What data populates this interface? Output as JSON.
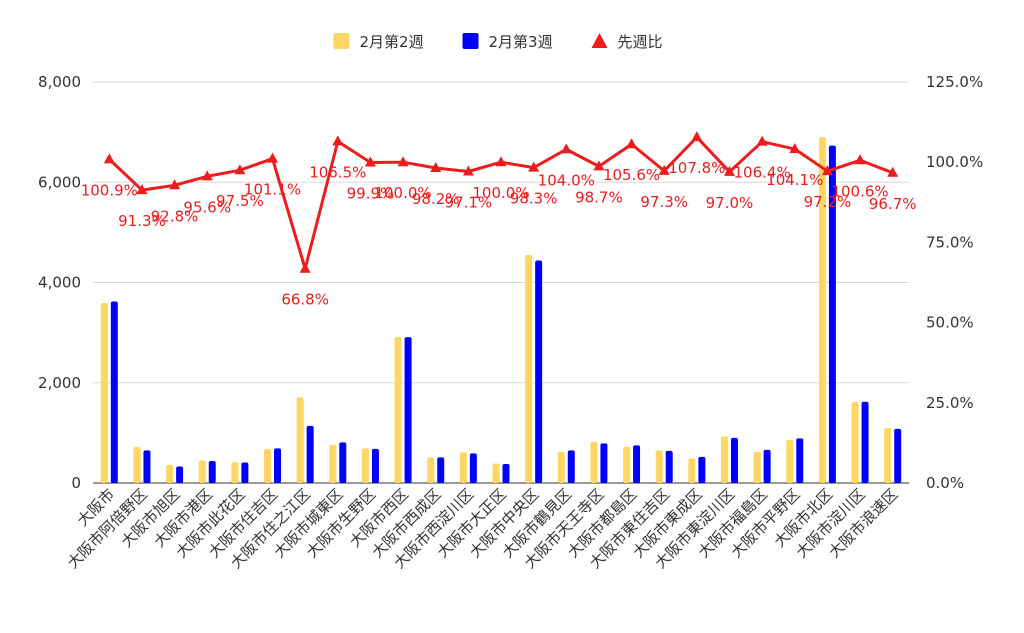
{
  "chart_data": {
    "type": "bar",
    "legend_position": "top",
    "grid": true,
    "categories": [
      "大阪市",
      "大阪市阿倍野区",
      "大阪市旭区",
      "大阪市港区",
      "大阪市此花区",
      "大阪市住吉区",
      "大阪市住之江区",
      "大阪市城東区",
      "大阪市生野区",
      "大阪市西区",
      "大阪市西成区",
      "大阪市西淀川区",
      "大阪市大正区",
      "大阪市中央区",
      "大阪市鶴見区",
      "大阪市天王寺区",
      "大阪市都島区",
      "大阪市東住吉区",
      "大阪市東成区",
      "大阪市東淀川区",
      "大阪市福島区",
      "大阪市平野区",
      "大阪市北区",
      "大阪市淀川区",
      "大阪市浪速区"
    ],
    "y_left": {
      "min": 0,
      "max": 8000,
      "ticks": [
        "0",
        "2,000",
        "4,000",
        "6,000",
        "8,000"
      ]
    },
    "y_right": {
      "min": 0,
      "max": 125,
      "ticks": [
        "0.0%",
        "25.0%",
        "50.0%",
        "75.0%",
        "100.0%",
        "125.0%"
      ]
    },
    "series": [
      {
        "name": "2月第2週",
        "type": "bar",
        "color": "#fdd663",
        "values": [
          3590,
          720,
          360,
          450,
          420,
          680,
          1710,
          760,
          690,
          2910,
          510,
          610,
          390,
          4550,
          620,
          820,
          720,
          650,
          490,
          930,
          620,
          860,
          6900,
          1610,
          1100
        ]
      },
      {
        "name": "2月第3週",
        "type": "bar",
        "color": "#0000ff",
        "values": [
          3620,
          650,
          330,
          440,
          410,
          690,
          1140,
          810,
          680,
          2910,
          510,
          590,
          380,
          4440,
          650,
          790,
          750,
          640,
          520,
          900,
          660,
          890,
          6730,
          1620,
          1080
        ]
      },
      {
        "name": "先週比",
        "type": "line",
        "axis": "right",
        "color": "#ee1c1c",
        "marker": "triangle",
        "values": [
          100.9,
          91.3,
          92.8,
          95.6,
          97.5,
          101.1,
          66.8,
          106.5,
          99.9,
          100.0,
          98.2,
          97.1,
          100.0,
          98.3,
          104.0,
          98.7,
          105.6,
          97.3,
          107.8,
          97.0,
          106.4,
          104.1,
          97.2,
          100.6,
          96.7
        ],
        "labels": [
          "100.9%",
          "91.3%",
          "92.8%",
          "95.6%",
          "97.5%",
          "101.1%",
          "66.8%",
          "106.5%",
          "99.9%",
          "100.0%",
          "98.2%",
          "97.1%",
          "100.0%",
          "98.3%",
          "104.0%",
          "98.7%",
          "105.6%",
          "97.3%",
          "107.8%",
          "97.0%",
          "106.4%",
          "104.1%",
          "97.2%",
          "100.6%",
          "96.7%"
        ]
      }
    ]
  }
}
